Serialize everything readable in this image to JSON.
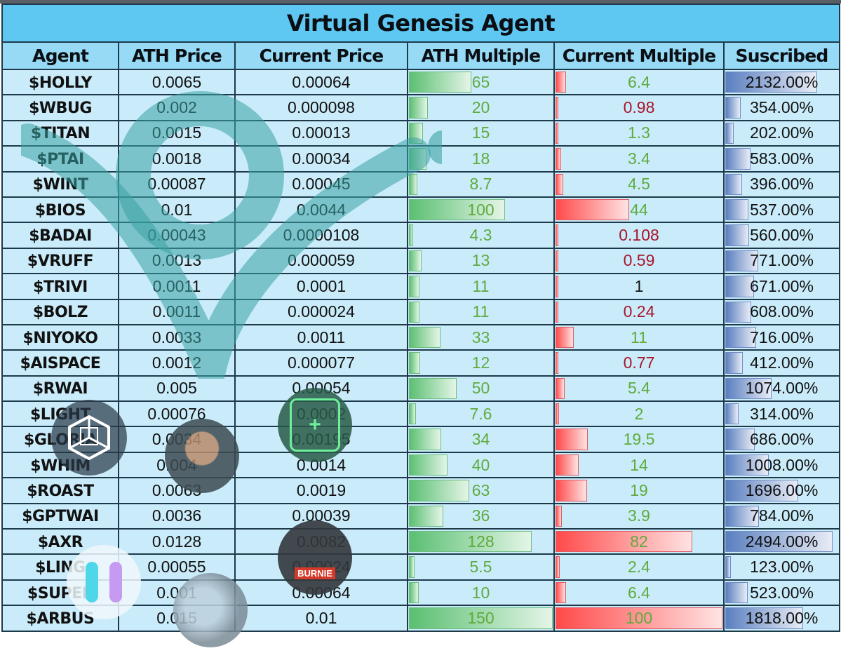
{
  "title": "Virtual Genesis Agent",
  "columns": [
    "Agent",
    "ATH Price",
    "Current Price",
    "ATH Multiple",
    "Current Multiple",
    "Suscribed"
  ],
  "colors": {
    "title_bg": "#5ec8f2",
    "header_bg": "#96daf6",
    "row_bg": "#caecfa",
    "positive_text": "#5faa3e",
    "negative_text": "#a8152a",
    "green_bar": "#5bbf72",
    "red_bar": "#ff4a4a",
    "blue_bar": "#5a7fbf"
  },
  "rows": [
    {
      "agent": "$HOLLY",
      "ath_price": "0.0065",
      "current_price": "0.00064",
      "ath_multiple": "65",
      "current_multiple": "6.4",
      "subscribed": "2132.00%"
    },
    {
      "agent": "$WBUG",
      "ath_price": "0.002",
      "current_price": "0.000098",
      "ath_multiple": "20",
      "current_multiple": "0.98",
      "subscribed": "354.00%"
    },
    {
      "agent": "$TITAN",
      "ath_price": "0.0015",
      "current_price": "0.00013",
      "ath_multiple": "15",
      "current_multiple": "1.3",
      "subscribed": "202.00%"
    },
    {
      "agent": "$PTAI",
      "ath_price": "0.0018",
      "current_price": "0.00034",
      "ath_multiple": "18",
      "current_multiple": "3.4",
      "subscribed": "583.00%"
    },
    {
      "agent": "$WINT",
      "ath_price": "0.00087",
      "current_price": "0.00045",
      "ath_multiple": "8.7",
      "current_multiple": "4.5",
      "subscribed": "396.00%"
    },
    {
      "agent": "$BIOS",
      "ath_price": "0.01",
      "current_price": "0.0044",
      "ath_multiple": "100",
      "current_multiple": "44",
      "subscribed": "537.00%"
    },
    {
      "agent": "$BADAI",
      "ath_price": "0.00043",
      "current_price": "0.0000108",
      "ath_multiple": "4.3",
      "current_multiple": "0.108",
      "subscribed": "560.00%"
    },
    {
      "agent": "$VRUFF",
      "ath_price": "0.0013",
      "current_price": "0.000059",
      "ath_multiple": "13",
      "current_multiple": "0.59",
      "subscribed": "771.00%"
    },
    {
      "agent": "$TRIVI",
      "ath_price": "0.0011",
      "current_price": "0.0001",
      "ath_multiple": "11",
      "current_multiple": "1",
      "subscribed": "671.00%"
    },
    {
      "agent": "$BOLZ",
      "ath_price": "0.0011",
      "current_price": "0.000024",
      "ath_multiple": "11",
      "current_multiple": "0.24",
      "subscribed": "608.00%"
    },
    {
      "agent": "$NIYOKO",
      "ath_price": "0.0033",
      "current_price": "0.0011",
      "ath_multiple": "33",
      "current_multiple": "11",
      "subscribed": "716.00%"
    },
    {
      "agent": "$AISPACE",
      "ath_price": "0.0012",
      "current_price": "0.000077",
      "ath_multiple": "12",
      "current_multiple": "0.77",
      "subscribed": "412.00%"
    },
    {
      "agent": "$RWAI",
      "ath_price": "0.005",
      "current_price": "0.00054",
      "ath_multiple": "50",
      "current_multiple": "5.4",
      "subscribed": "1074.00%"
    },
    {
      "agent": "$LIGHT",
      "ath_price": "0.00076",
      "current_price": "0.0002",
      "ath_multiple": "7.6",
      "current_multiple": "2",
      "subscribed": "314.00%"
    },
    {
      "agent": "$GLORIA",
      "ath_price": "0.0034",
      "current_price": "0.00195",
      "ath_multiple": "34",
      "current_multiple": "19.5",
      "subscribed": "686.00%"
    },
    {
      "agent": "$WHIM",
      "ath_price": "0.004",
      "current_price": "0.0014",
      "ath_multiple": "40",
      "current_multiple": "14",
      "subscribed": "1008.00%"
    },
    {
      "agent": "$ROAST",
      "ath_price": "0.0063",
      "current_price": "0.0019",
      "ath_multiple": "63",
      "current_multiple": "19",
      "subscribed": "1696.00%"
    },
    {
      "agent": "$GPTWAI",
      "ath_price": "0.0036",
      "current_price": "0.00039",
      "ath_multiple": "36",
      "current_multiple": "3.9",
      "subscribed": "784.00%"
    },
    {
      "agent": "$AXR",
      "ath_price": "0.0128",
      "current_price": "0.0082",
      "ath_multiple": "128",
      "current_multiple": "82",
      "subscribed": "2494.00%"
    },
    {
      "agent": "$LING",
      "ath_price": "0.00055",
      "current_price": "0.00024",
      "ath_multiple": "5.5",
      "current_multiple": "2.4",
      "subscribed": "123.00%"
    },
    {
      "agent": "$SUPER",
      "ath_price": "0.001",
      "current_price": "0.00064",
      "ath_multiple": "10",
      "current_multiple": "6.4",
      "subscribed": "523.00%"
    },
    {
      "agent": "$ARBUS",
      "ath_price": "0.015",
      "current_price": "0.01",
      "ath_multiple": "150",
      "current_multiple": "100",
      "subscribed": "1818.00%"
    }
  ]
}
